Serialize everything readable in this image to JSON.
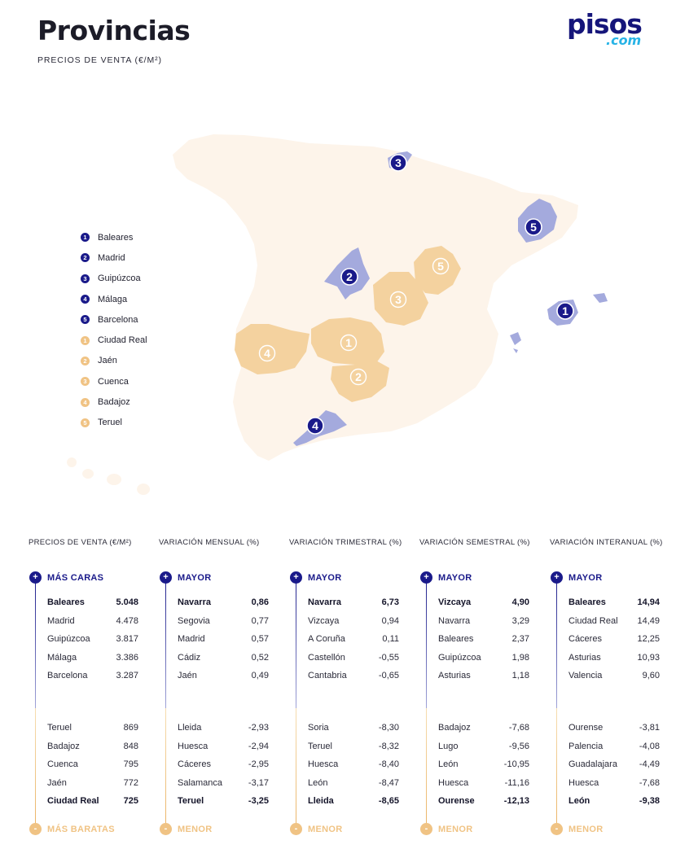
{
  "header": {
    "title": "Provincias",
    "subtitle": "PRECIOS DE VENTA (€/M²)"
  },
  "logo": {
    "main": "pisos",
    "sub": ".com"
  },
  "colors": {
    "navy": "#1a1a8a",
    "lavender": "#a4aadd",
    "orange": "#f0c384",
    "peach": "#f4d29f",
    "land": "#fdf4ea"
  },
  "legend": [
    {
      "num": "1",
      "label": "Baleares",
      "group": "top"
    },
    {
      "num": "2",
      "label": "Madrid",
      "group": "top"
    },
    {
      "num": "3",
      "label": "Guipúzcoa",
      "group": "top"
    },
    {
      "num": "4",
      "label": "Málaga",
      "group": "top"
    },
    {
      "num": "5",
      "label": "Barcelona",
      "group": "top"
    },
    {
      "num": "1",
      "label": "Ciudad Real",
      "group": "bottom"
    },
    {
      "num": "2",
      "label": "Jaén",
      "group": "bottom"
    },
    {
      "num": "3",
      "label": "Cuenca",
      "group": "bottom"
    },
    {
      "num": "4",
      "label": "Badajoz",
      "group": "bottom"
    },
    {
      "num": "5",
      "label": "Teruel",
      "group": "bottom"
    }
  ],
  "map_markers": [
    {
      "num": "1",
      "province": "Baleares",
      "group": "top"
    },
    {
      "num": "2",
      "province": "Madrid",
      "group": "top"
    },
    {
      "num": "3",
      "province": "Guipúzcoa",
      "group": "top"
    },
    {
      "num": "4",
      "province": "Málaga",
      "group": "top"
    },
    {
      "num": "5",
      "province": "Barcelona",
      "group": "top"
    },
    {
      "num": "1",
      "province": "Ciudad Real",
      "group": "bottom"
    },
    {
      "num": "2",
      "province": "Jaén",
      "group": "bottom"
    },
    {
      "num": "3",
      "province": "Cuenca",
      "group": "bottom"
    },
    {
      "num": "4",
      "province": "Badajoz",
      "group": "bottom"
    },
    {
      "num": "5",
      "province": "Teruel",
      "group": "bottom"
    }
  ],
  "columns": [
    {
      "heading": "PRECIOS DE VENTA (€/M²)",
      "top_label": "MÁS CARAS",
      "bottom_label": "MÁS BARATAS",
      "top": [
        {
          "name": "Baleares",
          "value": "5.048",
          "bold": true
        },
        {
          "name": "Madrid",
          "value": "4.478"
        },
        {
          "name": "Guipúzcoa",
          "value": "3.817"
        },
        {
          "name": "Málaga",
          "value": "3.386"
        },
        {
          "name": "Barcelona",
          "value": "3.287"
        }
      ],
      "bottom": [
        {
          "name": "Teruel",
          "value": "869"
        },
        {
          "name": "Badajoz",
          "value": "848"
        },
        {
          "name": "Cuenca",
          "value": "795"
        },
        {
          "name": "Jaén",
          "value": "772"
        },
        {
          "name": "Ciudad Real",
          "value": "725",
          "bold": true
        }
      ]
    },
    {
      "heading": "VARIACIÓN MENSUAL (%)",
      "top_label": "MAYOR",
      "bottom_label": "MENOR",
      "top": [
        {
          "name": "Navarra",
          "value": "0,86",
          "bold": true
        },
        {
          "name": "Segovia",
          "value": "0,77"
        },
        {
          "name": "Madrid",
          "value": "0,57"
        },
        {
          "name": "Cádiz",
          "value": "0,52"
        },
        {
          "name": "Jaén",
          "value": "0,49"
        }
      ],
      "bottom": [
        {
          "name": "Lleida",
          "value": "-2,93"
        },
        {
          "name": "Huesca",
          "value": "-2,94"
        },
        {
          "name": "Cáceres",
          "value": "-2,95"
        },
        {
          "name": "Salamanca",
          "value": "-3,17"
        },
        {
          "name": "Teruel",
          "value": "-3,25",
          "bold": true
        }
      ]
    },
    {
      "heading": "VARIACIÓN TRIMESTRAL (%)",
      "top_label": "MAYOR",
      "bottom_label": "MENOR",
      "top": [
        {
          "name": "Navarra",
          "value": "6,73",
          "bold": true
        },
        {
          "name": "Vizcaya",
          "value": "0,94"
        },
        {
          "name": "A Coruña",
          "value": "0,11"
        },
        {
          "name": "Castellón",
          "value": "-0,55"
        },
        {
          "name": "Cantabria",
          "value": "-0,65"
        }
      ],
      "bottom": [
        {
          "name": "Soria",
          "value": "-8,30"
        },
        {
          "name": "Teruel",
          "value": "-8,32"
        },
        {
          "name": "Huesca",
          "value": "-8,40"
        },
        {
          "name": "León",
          "value": "-8,47"
        },
        {
          "name": "Lleida",
          "value": "-8,65",
          "bold": true
        }
      ]
    },
    {
      "heading": "VARIACIÓN SEMESTRAL (%)",
      "top_label": "MAYOR",
      "bottom_label": "MENOR",
      "top": [
        {
          "name": "Vizcaya",
          "value": "4,90",
          "bold": true
        },
        {
          "name": "Navarra",
          "value": "3,29"
        },
        {
          "name": "Baleares",
          "value": "2,37"
        },
        {
          "name": "Guipúzcoa",
          "value": "1,98"
        },
        {
          "name": "Asturias",
          "value": "1,18"
        }
      ],
      "bottom": [
        {
          "name": "Badajoz",
          "value": "-7,68"
        },
        {
          "name": "Lugo",
          "value": "-9,56"
        },
        {
          "name": "León",
          "value": "-10,95"
        },
        {
          "name": "Huesca",
          "value": "-11,16"
        },
        {
          "name": "Ourense",
          "value": "-12,13",
          "bold": true
        }
      ]
    },
    {
      "heading": "VARIACIÓN INTERANUAL (%)",
      "top_label": "MAYOR",
      "bottom_label": "MENOR",
      "top": [
        {
          "name": "Baleares",
          "value": "14,94",
          "bold": true
        },
        {
          "name": "Ciudad Real",
          "value": "14,49"
        },
        {
          "name": "Cáceres",
          "value": "12,25"
        },
        {
          "name": "Asturias",
          "value": "10,93"
        },
        {
          "name": "Valencia",
          "value": "9,60"
        }
      ],
      "bottom": [
        {
          "name": "Ourense",
          "value": "-3,81"
        },
        {
          "name": "Palencia",
          "value": "-4,08"
        },
        {
          "name": "Guadalajara",
          "value": "-4,49"
        },
        {
          "name": "Huesca",
          "value": "-7,68"
        },
        {
          "name": "León",
          "value": "-9,38",
          "bold": true
        }
      ]
    }
  ]
}
